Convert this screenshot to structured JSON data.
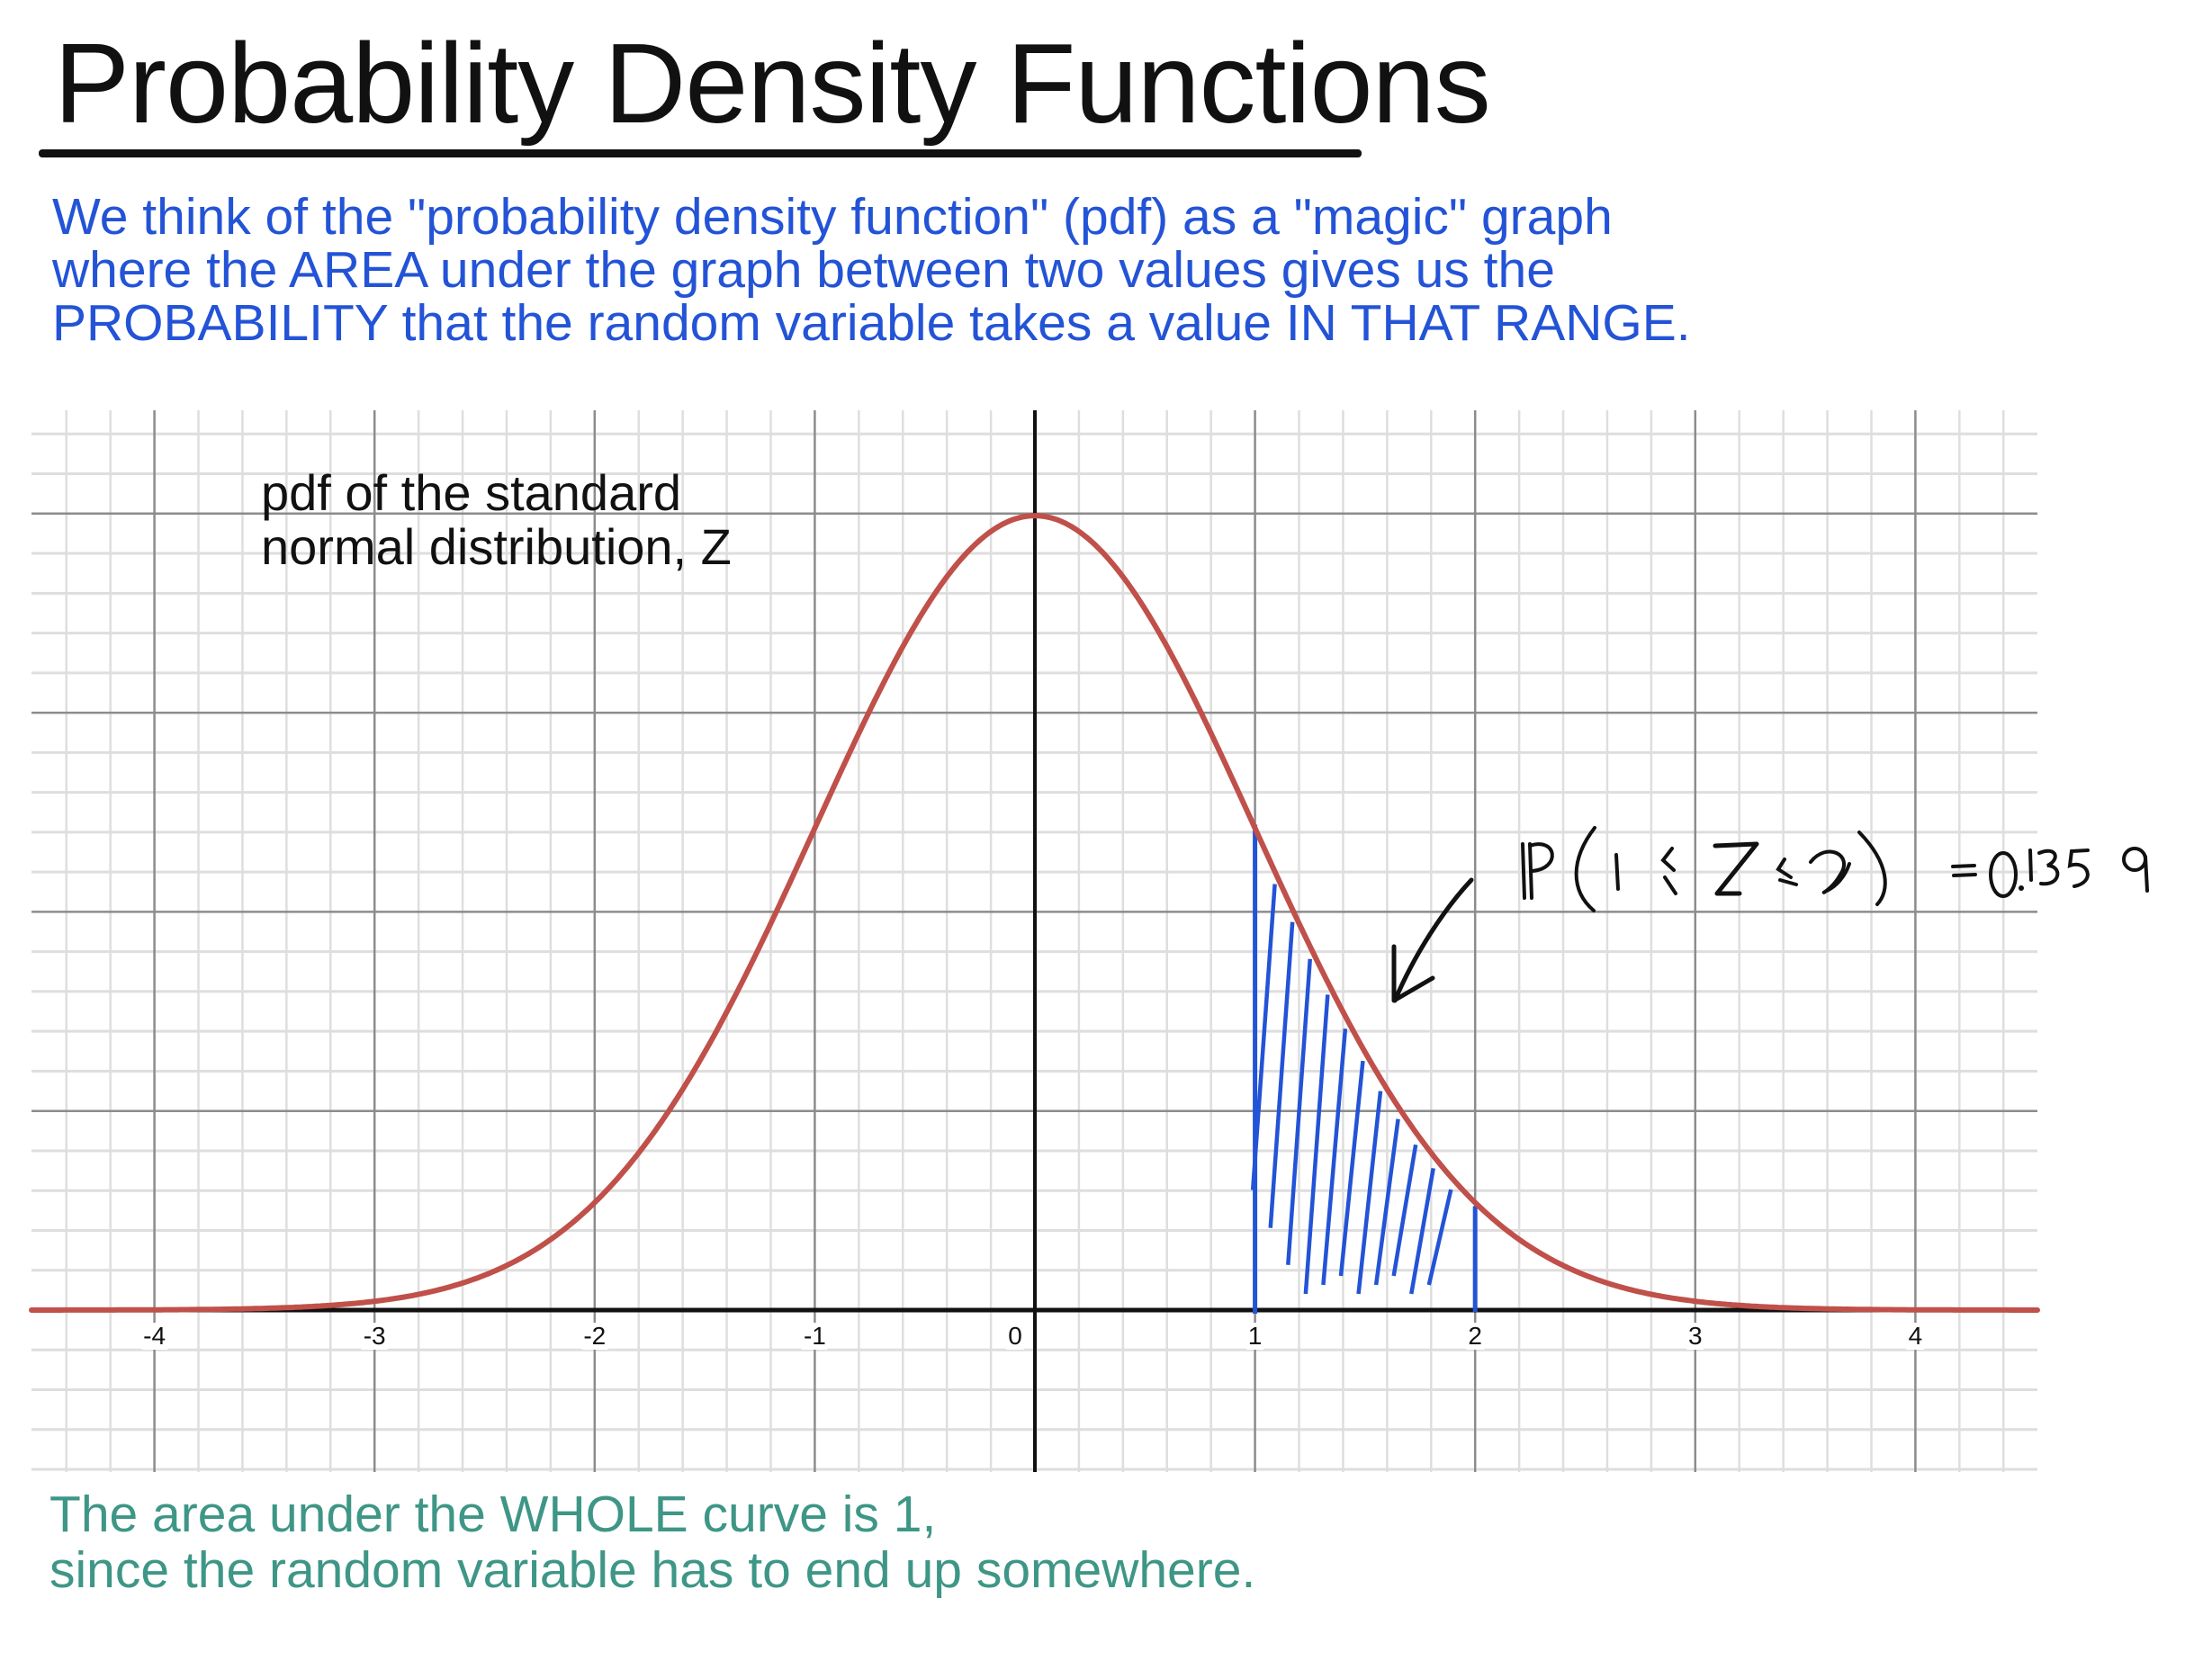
{
  "title": "Probability Density Functions",
  "intro": {
    "lines": [
      "We think of the \"probability density function\" (pdf) as a \"magic\" graph",
      "where the AREA under the graph between two values gives us the",
      "PROBABILITY that the random variable takes a value IN THAT RANGE."
    ]
  },
  "plot_label": {
    "lines": [
      "pdf of the standard",
      "normal distribution, Z"
    ]
  },
  "annotation": {
    "text": "P(1 ≤ Z ≤ 2)",
    "result": "= 0.1359"
  },
  "outro": {
    "lines": [
      "The area under the WHOLE curve is 1,",
      "since the random variable has to end up somewhere."
    ]
  },
  "colors": {
    "title": "#111111",
    "intro_text": "#2353d6",
    "outro_text": "#3e9686",
    "curve": "#c0504a",
    "shading": "#2353d6",
    "major_grid": "#8c8c8c",
    "minor_grid": "#dedede",
    "axis": "#111111"
  },
  "chart_data": {
    "type": "line",
    "title": "pdf of the standard normal distribution, Z",
    "xlabel": "",
    "ylabel": "",
    "xlim": [
      -4.6,
      4.5
    ],
    "ylim": [
      -0.08,
      0.45
    ],
    "x_ticks": [
      -4,
      -3,
      -2,
      -1,
      0,
      1,
      2,
      3,
      4
    ],
    "x_tick_labels": [
      "-4",
      "-3",
      "-2",
      "-1",
      "0",
      "1",
      "2",
      "3",
      "4"
    ],
    "grid": true,
    "grid_major_x": 1,
    "grid_minor_x": 0.2,
    "grid_major_y": 0.1,
    "grid_minor_y": 0.02,
    "series": [
      {
        "name": "standard normal pdf",
        "function": "exp(-x^2/2)/sqrt(2*pi)",
        "x": [
          -4,
          -3.5,
          -3,
          -2.5,
          -2,
          -1.5,
          -1,
          -0.5,
          0,
          0.5,
          1,
          1.5,
          2,
          2.5,
          3,
          3.5,
          4
        ],
        "values": [
          0.0001,
          0.0009,
          0.0044,
          0.0175,
          0.054,
          0.1295,
          0.242,
          0.3521,
          0.3989,
          0.3521,
          0.242,
          0.1295,
          0.054,
          0.0175,
          0.0044,
          0.0009,
          0.0001
        ]
      }
    ],
    "shaded_region": {
      "from": 1,
      "to": 2,
      "probability": 0.1359,
      "label": "P(1 ≤ Z ≤ 2) = 0.1359"
    }
  }
}
